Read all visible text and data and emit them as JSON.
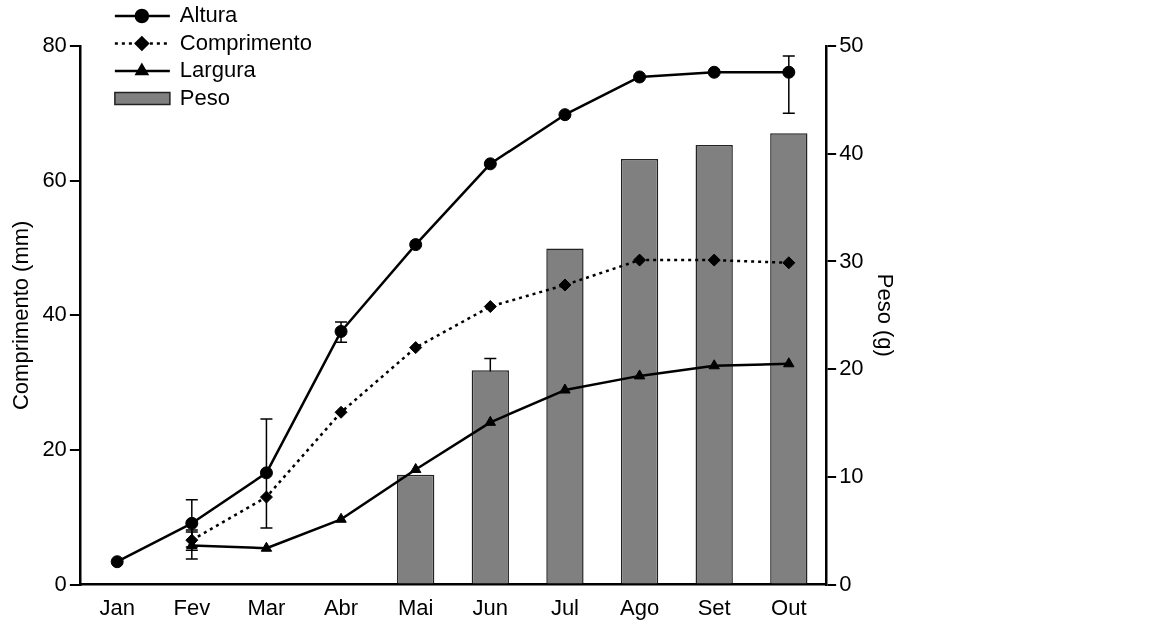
{
  "chart_data": {
    "type": "line",
    "xlabel": null,
    "ylabel": "Comprimento (mm)",
    "y2label": "Peso (g)",
    "categories": [
      "Jan",
      "Fev",
      "Mar",
      "Abr",
      "Mai",
      "Jun",
      "Jul",
      "Ago",
      "Set",
      "Out"
    ],
    "ylim": [
      0,
      80
    ],
    "yticks": [
      0,
      20,
      40,
      60,
      80
    ],
    "y2lim": [
      0,
      50
    ],
    "y2ticks": [
      0,
      10,
      20,
      30,
      40,
      50
    ],
    "grid": false,
    "legend": "top left",
    "series": [
      {
        "name": "Altura",
        "color": "#000000",
        "marker": "circle",
        "line_style": "solid",
        "values": [
          3.4,
          9.1,
          16.6,
          37.6,
          50.5,
          62.5,
          69.8,
          75.4,
          76.1,
          76.1
        ],
        "errors": [
          null,
          3.5,
          [
            8.4,
            24.6
          ],
          [
            36,
            39
          ],
          null,
          null,
          null,
          null,
          null,
          [
            70,
            78.5
          ]
        ]
      },
      {
        "name": "Comprimento",
        "color": "#000000",
        "marker": "diamond",
        "line_style": "dotted",
        "values": [
          null,
          6.6,
          13.0,
          25.6,
          35.2,
          41.3,
          44.5,
          48.2,
          48.2,
          47.8
        ],
        "errors": [
          null,
          1.5,
          null,
          null,
          null,
          null,
          null,
          null,
          null,
          1.5
        ]
      },
      {
        "name": "Largura",
        "color": "#000000",
        "marker": "triangle",
        "line_style": "solid",
        "values": [
          null,
          5.8,
          5.4,
          9.7,
          17.1,
          24.1,
          28.9,
          31.0,
          32.5,
          32.8
        ],
        "errors": [
          null,
          2,
          null,
          null,
          null,
          null,
          null,
          null,
          null,
          null
        ]
      },
      {
        "name": "Peso",
        "type": "bar",
        "axis": "y2",
        "color": "#808080",
        "values": [
          null,
          null,
          null,
          null,
          10.2,
          19.9,
          31.2,
          39.5,
          40.8,
          41.9
        ],
        "errors": [
          null,
          null,
          null,
          null,
          null,
          1.1,
          null,
          null,
          null,
          null
        ]
      }
    ]
  }
}
